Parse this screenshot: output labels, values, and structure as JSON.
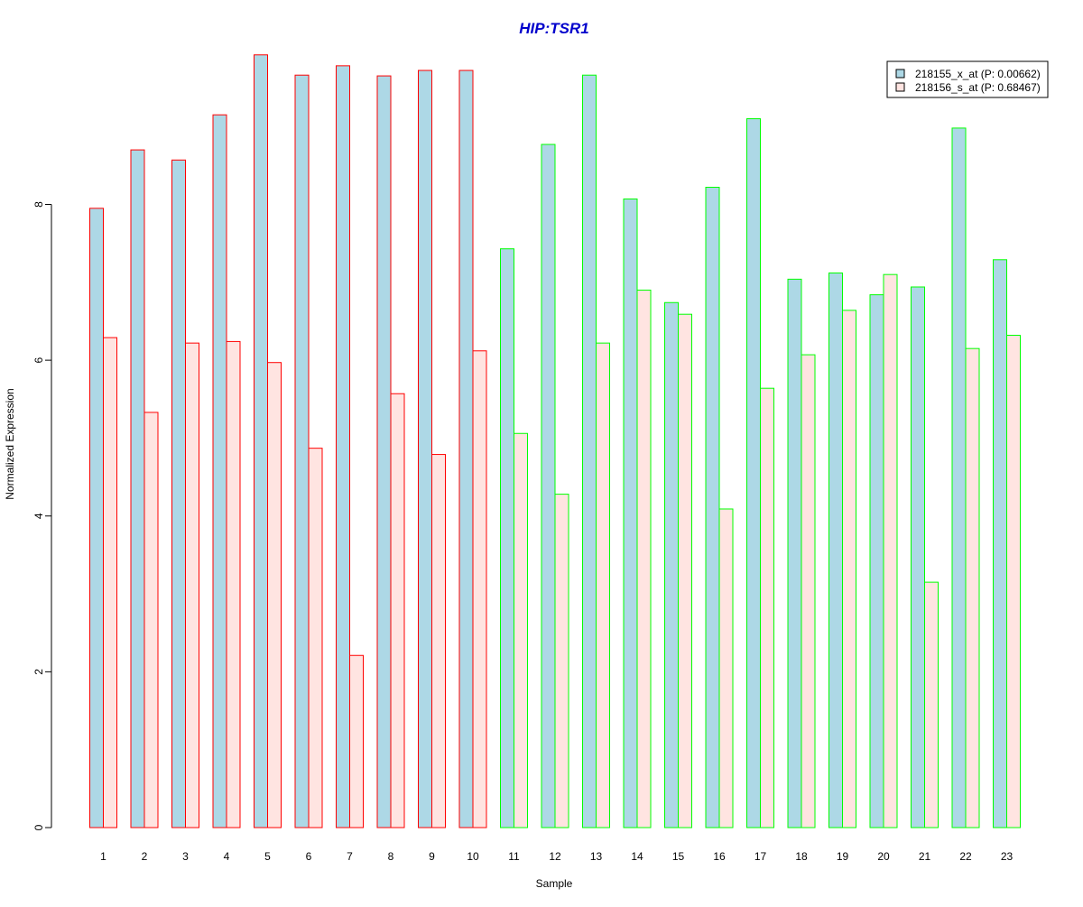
{
  "chart_data": {
    "type": "bar",
    "title": "HIP:TSR1",
    "xlabel": "Sample",
    "ylabel": "Normalized Expression",
    "categories": [
      "1",
      "2",
      "3",
      "4",
      "5",
      "6",
      "7",
      "8",
      "9",
      "10",
      "11",
      "12",
      "13",
      "14",
      "15",
      "16",
      "17",
      "18",
      "19",
      "20",
      "21",
      "22",
      "23"
    ],
    "y_ticks": [
      0,
      2,
      4,
      6,
      8
    ],
    "ylim": [
      0,
      10
    ],
    "grid": false,
    "legend_position": "top-right",
    "series": [
      {
        "name": "218155_x_at (P: 0.00662)",
        "fill": "#add8e6",
        "values": [
          7.95,
          8.7,
          8.57,
          9.15,
          9.92,
          9.66,
          9.78,
          9.65,
          9.72,
          9.72,
          7.43,
          8.77,
          9.66,
          8.07,
          6.74,
          8.22,
          9.1,
          7.04,
          7.12,
          6.84,
          6.94,
          8.98,
          7.29
        ]
      },
      {
        "name": "218156_s_at (P: 0.68467)",
        "fill": "#ffe4e1",
        "values": [
          6.29,
          5.33,
          6.22,
          6.24,
          5.97,
          4.87,
          2.21,
          5.57,
          4.79,
          6.12,
          5.06,
          4.28,
          6.22,
          6.9,
          6.59,
          4.09,
          5.64,
          6.07,
          6.64,
          7.1,
          3.15,
          6.15,
          6.32
        ]
      }
    ],
    "group_border_colors": {
      "1-10": "#ff0000",
      "11-23": "#00ff00"
    },
    "title_color": "#0000cc"
  }
}
